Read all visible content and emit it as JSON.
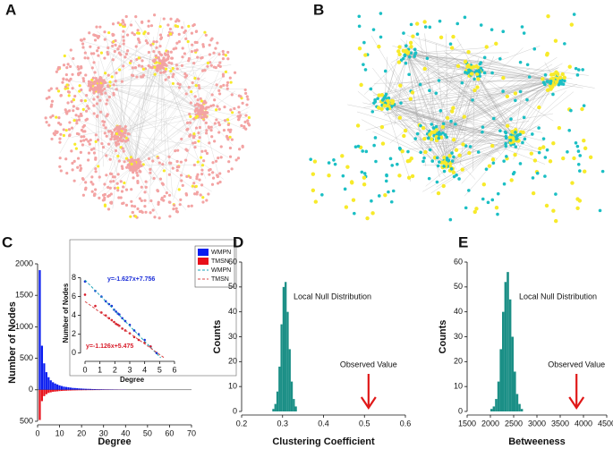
{
  "networks": [
    {
      "label": "A",
      "colors": [
        "#f3a3a3",
        "#f7ea2a"
      ]
    },
    {
      "label": "B",
      "colors": [
        "#1bbfc4",
        "#f7ea2a"
      ]
    }
  ],
  "chart_data": [
    {
      "type": "bar",
      "label": "C",
      "xlabel": "Degree",
      "ylabel": "Number of Nodes",
      "x": [
        1,
        2,
        3,
        4,
        5,
        6,
        7,
        8,
        9,
        10,
        11,
        12,
        13,
        14,
        15,
        16,
        17,
        18,
        19,
        20,
        21,
        22,
        23,
        24,
        25,
        26,
        27,
        28,
        29,
        30,
        31,
        32,
        33,
        34,
        35,
        36,
        37,
        38,
        39,
        40
      ],
      "series": [
        {
          "name": "WMPN",
          "color": "#0a1df0",
          "values": [
            1900,
            700,
            420,
            280,
            200,
            150,
            120,
            100,
            85,
            70,
            60,
            50,
            45,
            40,
            35,
            30,
            28,
            25,
            22,
            20,
            18,
            16,
            15,
            14,
            12,
            11,
            10,
            9,
            9,
            8,
            7,
            7,
            6,
            6,
            5,
            5,
            4,
            4,
            3,
            3
          ]
        },
        {
          "name": "TMSN",
          "color": "#e8111b",
          "values": [
            -480,
            -180,
            -100,
            -70,
            -50,
            -40,
            -32,
            -28,
            -24,
            -20,
            -18,
            -16,
            -14,
            -12,
            -11,
            -10,
            -9,
            -8,
            -7,
            -7,
            -6,
            -6,
            -5,
            -5,
            -5,
            -4,
            -4,
            -4,
            -3,
            -3,
            -3,
            -3,
            -2,
            -2,
            -2,
            -2,
            -2,
            -2,
            -1,
            -1
          ]
        }
      ],
      "xlim": [
        0,
        70
      ],
      "xticks": [
        0,
        10,
        20,
        30,
        40,
        50,
        60,
        70
      ],
      "ylim": [
        -500,
        2000
      ],
      "yticks": [
        {
          "value": -500,
          "label": "500"
        },
        0,
        500,
        1000,
        1500,
        2000
      ]
    },
    {
      "type": "scatter",
      "xlabel": "Degree",
      "ylabel": "Number of Nodes",
      "series": [
        {
          "name": "WMPN",
          "color": "#1c2fd8",
          "x": [
            0,
            0.69,
            1.1,
            1.39,
            1.61,
            1.79,
            1.95,
            2.08,
            2.2,
            2.3,
            2.5,
            2.7,
            3.0,
            3.3,
            3.6,
            4.0,
            4.4,
            4.8
          ],
          "values": [
            7.6,
            6.6,
            6.0,
            5.5,
            5.2,
            5.0,
            4.6,
            4.4,
            4.2,
            4.1,
            3.7,
            3.4,
            3.0,
            2.4,
            2.0,
            1.4,
            0.7,
            0
          ]
        },
        {
          "name": "TMSN",
          "color": "#d81c2a",
          "x": [
            0,
            0.69,
            1.1,
            1.39,
            1.61,
            1.79,
            1.95,
            2.08,
            2.2,
            2.3,
            2.5,
            2.7,
            3.0,
            3.3,
            3.6,
            4.0,
            4.4
          ],
          "values": [
            6.2,
            5.0,
            4.3,
            4.0,
            3.7,
            3.5,
            3.3,
            3.1,
            3.0,
            2.9,
            2.6,
            2.4,
            2.1,
            1.7,
            1.4,
            1.1,
            0.7
          ]
        }
      ],
      "fits": [
        {
          "name": "WMPN",
          "color": "#1aa3b8",
          "slope": -1.627,
          "intercept": 7.756,
          "label": "y=-1.627x+7.756",
          "label_color": "#1c2fd8"
        },
        {
          "name": "TMSN",
          "color": "#d84a4a",
          "slope": -1.126,
          "intercept": 5.475,
          "label": "y=-1.126x+5.475",
          "label_color": "#d81c2a"
        }
      ],
      "xlim": [
        -0.3,
        6.6
      ],
      "xticks": [
        0,
        1,
        2,
        3,
        4,
        5,
        6
      ],
      "ylim": [
        -0.5,
        9
      ],
      "yticks": [
        0,
        2,
        4,
        6,
        8
      ]
    },
    {
      "type": "histogram",
      "label": "D",
      "xlabel": "Clustering Coefficient",
      "ylabel": "Counts",
      "color": "#1b8f86",
      "bins": [
        0.275,
        0.28,
        0.285,
        0.29,
        0.295,
        0.3,
        0.305,
        0.31,
        0.315,
        0.32,
        0.325,
        0.33,
        0.335
      ],
      "counts": [
        1,
        3,
        8,
        18,
        35,
        50,
        52,
        40,
        25,
        12,
        5,
        2
      ],
      "annotation": "Local Null Distribution",
      "observed_label": "Observed Value",
      "observed": 0.51,
      "xlim": [
        0.2,
        0.6
      ],
      "xticks": [
        0.2,
        0.3,
        0.4,
        0.5,
        0.6
      ],
      "ylim": [
        0,
        60
      ],
      "yticks": [
        0,
        10,
        20,
        30,
        40,
        50,
        60
      ]
    },
    {
      "type": "histogram",
      "label": "E",
      "xlabel": "Betweeness",
      "ylabel": "Counts",
      "color": "#1b8f86",
      "bins": [
        2000,
        2050,
        2100,
        2150,
        2200,
        2250,
        2300,
        2350,
        2400,
        2450,
        2500,
        2550,
        2600,
        2650,
        2700
      ],
      "counts": [
        1,
        2,
        5,
        12,
        25,
        40,
        52,
        56,
        45,
        30,
        16,
        7,
        3,
        1
      ],
      "annotation": "Local Null Distribution",
      "observed_label": "Observed Value",
      "observed": 3850,
      "xlim": [
        1500,
        4500
      ],
      "xticks": [
        1500,
        2000,
        2500,
        3000,
        3500,
        4000,
        4500
      ],
      "ylim": [
        0,
        60
      ],
      "yticks": [
        0,
        10,
        20,
        30,
        40,
        50,
        60
      ]
    }
  ]
}
